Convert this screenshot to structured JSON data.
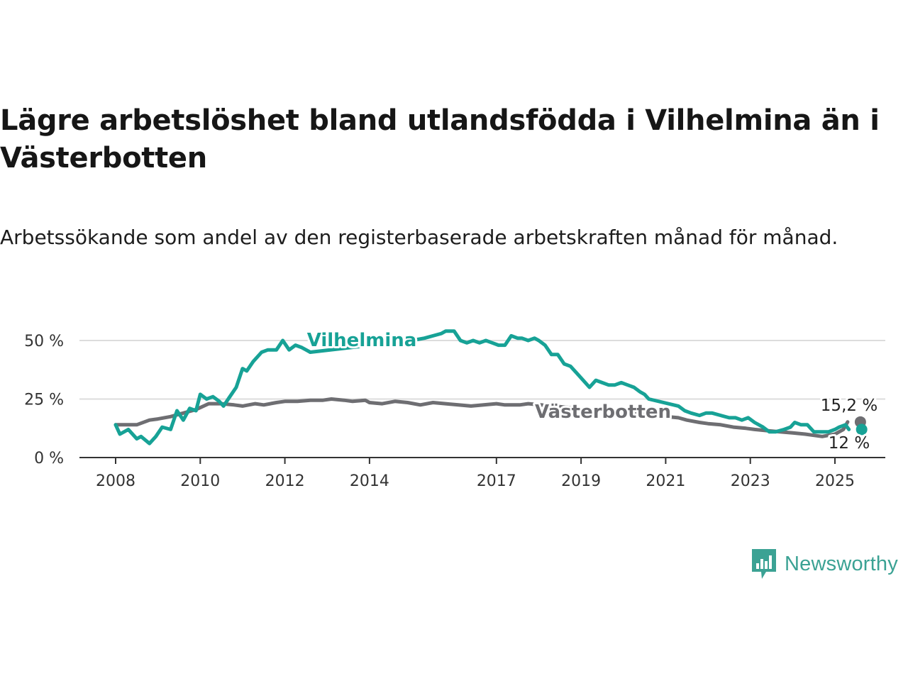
{
  "title": "Lägre arbetslöshet bland utlandsfödda i Vilhelmina än i Västerbotten",
  "subtitle": "Arbetssökande som andel av den registerbaserade arbetskraften månad för månad.",
  "brand": {
    "name": "Newsworthy",
    "color": "#3ba294"
  },
  "chart_data": {
    "type": "line",
    "title": "Lägre arbetslöshet bland utlandsfödda i Vilhelmina än i Västerbotten",
    "subtitle": "Arbetssökande som andel av den registerbaserade arbetskraften månad för månad.",
    "xlabel": "",
    "ylabel": "",
    "xlim": [
      2008,
      2025.5
    ],
    "ylim": [
      0,
      55
    ],
    "grid": true,
    "x_ticks": [
      {
        "value": 2008,
        "label": "2008"
      },
      {
        "value": 2010,
        "label": "2010"
      },
      {
        "value": 2012,
        "label": "2012"
      },
      {
        "value": 2014,
        "label": "2014"
      },
      {
        "value": 2017,
        "label": "2017"
      },
      {
        "value": 2019,
        "label": "2019"
      },
      {
        "value": 2021,
        "label": "2021"
      },
      {
        "value": 2023,
        "label": "2023"
      },
      {
        "value": 2025,
        "label": "2025"
      }
    ],
    "y_ticks": [
      {
        "value": 0,
        "label": "0 %"
      },
      {
        "value": 25,
        "label": "25 %"
      },
      {
        "value": 50,
        "label": "50 %"
      }
    ],
    "series": [
      {
        "name": "Vilhelmina",
        "color": "#17a296",
        "end_label": "12 %",
        "x": [
          2008.0,
          2008.1,
          2008.3,
          2008.5,
          2008.6,
          2008.8,
          2008.95,
          2009.1,
          2009.3,
          2009.45,
          2009.6,
          2009.75,
          2009.9,
          2010.0,
          2010.15,
          2010.3,
          2010.45,
          2010.55,
          2010.7,
          2010.85,
          2011.0,
          2011.1,
          2011.25,
          2011.45,
          2011.6,
          2011.8,
          2011.95,
          2012.1,
          2012.25,
          2012.4,
          2012.5,
          2012.6,
          2015.0,
          2015.3,
          2015.5,
          2015.7,
          2015.8,
          2016.0,
          2016.15,
          2016.3,
          2016.45,
          2016.6,
          2016.75,
          2016.9,
          2017.05,
          2017.2,
          2017.35,
          2017.5,
          2017.6,
          2017.75,
          2017.9,
          2018.0,
          2018.15,
          2018.3,
          2018.45,
          2018.6,
          2018.75,
          2018.9,
          2019.05,
          2019.2,
          2019.35,
          2019.5,
          2019.65,
          2019.8,
          2019.95,
          2020.1,
          2020.25,
          2020.4,
          2020.5,
          2020.6,
          2021.3,
          2021.45,
          2021.6,
          2021.8,
          2021.95,
          2022.1,
          2022.3,
          2022.5,
          2022.65,
          2022.8,
          2022.95,
          2023.1,
          2023.3,
          2023.45,
          2023.6,
          2023.8,
          2023.95,
          2024.05,
          2024.2,
          2024.35,
          2024.5,
          2024.6,
          2024.75,
          2024.85,
          2025.0,
          2025.1,
          2025.25,
          2025.33
        ],
        "y": [
          14,
          10,
          12,
          8,
          9,
          6,
          9,
          13,
          12,
          20,
          16,
          21,
          20,
          27,
          25,
          26,
          24,
          22,
          26,
          30,
          38,
          37,
          41,
          45,
          46,
          46,
          50,
          46,
          48,
          47,
          46,
          45,
          50,
          51,
          52,
          53,
          54,
          54,
          50,
          49,
          50,
          49,
          50,
          49,
          48,
          48,
          52,
          51,
          51,
          50,
          51,
          50,
          48,
          44,
          44,
          40,
          39,
          36,
          33,
          30,
          33,
          32,
          31,
          31,
          32,
          31,
          30,
          28,
          27,
          25,
          22,
          20,
          19,
          18,
          19,
          19,
          18,
          17,
          17,
          16,
          17,
          15,
          13,
          11,
          11,
          12,
          13,
          15,
          14,
          14,
          11,
          11,
          11,
          11,
          12,
          13,
          14,
          12
        ]
      },
      {
        "name": "Västerbotten",
        "color": "#6e6e72",
        "end_label": "15,2 %",
        "x": [
          2008.0,
          2008.5,
          2008.8,
          2009.0,
          2009.3,
          2009.6,
          2009.9,
          2010.2,
          2010.5,
          2010.8,
          2011.0,
          2011.3,
          2011.5,
          2011.8,
          2012.0,
          2012.3,
          2012.6,
          2012.9,
          2013.1,
          2013.4,
          2013.6,
          2013.9,
          2014.0,
          2014.3,
          2014.6,
          2014.9,
          2015.2,
          2015.5,
          2015.8,
          2016.1,
          2016.4,
          2016.7,
          2017.0,
          2017.2,
          2017.45,
          2017.55,
          2017.75,
          2021.3,
          2021.5,
          2021.8,
          2022.0,
          2022.3,
          2022.6,
          2022.9,
          2023.1,
          2023.4,
          2023.7,
          2024.0,
          2024.3,
          2024.5,
          2024.7,
          2025.0,
          2025.1,
          2025.2,
          2025.3
        ],
        "y": [
          14,
          14,
          16,
          16.5,
          17.5,
          19,
          20.5,
          23,
          23,
          22.5,
          22,
          23,
          22.5,
          23.5,
          24,
          24,
          24.5,
          24.5,
          25,
          24.5,
          24,
          24.5,
          23.5,
          23,
          24,
          23.5,
          22.5,
          23.5,
          23,
          22.5,
          22,
          22.5,
          23,
          22.5,
          22.5,
          22.5,
          23,
          17,
          16,
          15,
          14.5,
          14,
          13,
          12.5,
          12,
          11.5,
          11,
          10.5,
          10,
          9.5,
          9,
          10,
          11,
          12,
          15.2
        ]
      }
    ],
    "annotations": [
      {
        "text": "Vilhelmina",
        "series": "Vilhelmina"
      },
      {
        "text": "Västerbotten",
        "series": "Västerbotten"
      },
      {
        "text": "15,2 %",
        "series": "Västerbotten"
      },
      {
        "text": "12 %",
        "series": "Vilhelmina"
      }
    ]
  }
}
